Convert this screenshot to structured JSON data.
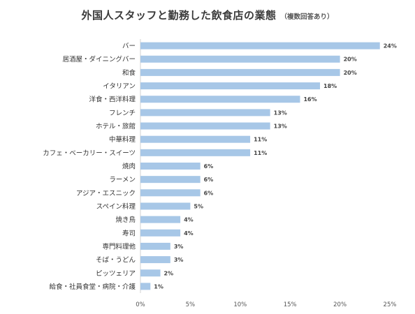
{
  "chart_data": {
    "type": "bar",
    "orientation": "horizontal",
    "title": "外国人スタッフと勤務した飲食店の業態",
    "subtitle": "（複数回答あり）",
    "categories": [
      "バー",
      "居酒屋・ダイニングバー",
      "和食",
      "イタリアン",
      "洋食・西洋料理",
      "フレンチ",
      "ホテル・旅館",
      "中華料理",
      "カフェ・ベーカリー・スイーツ",
      "焼肉",
      "ラーメン",
      "アジア・エスニック",
      "スペイン料理",
      "焼き鳥",
      "寿司",
      "専門料理他",
      "そば・うどん",
      "ピッツェリア",
      "給食・社員食堂・病院・介護"
    ],
    "values": [
      24,
      20,
      20,
      18,
      16,
      13,
      13,
      11,
      11,
      6,
      6,
      6,
      5,
      4,
      4,
      3,
      3,
      2,
      1
    ],
    "value_labels": [
      "24%",
      "20%",
      "20%",
      "18%",
      "16%",
      "13%",
      "13%",
      "11%",
      "11%",
      "6%",
      "6%",
      "6%",
      "5%",
      "4%",
      "4%",
      "3%",
      "3%",
      "2%",
      "1%"
    ],
    "xlim": [
      0,
      25
    ],
    "xticks": [
      0,
      5,
      10,
      15,
      20,
      25
    ],
    "xtick_labels": [
      "0%",
      "5%",
      "10%",
      "15%",
      "20%",
      "25%"
    ],
    "grid": false,
    "legend": "none",
    "bar_color": "#a7c7e7",
    "axis_color": "#d0d0d0"
  }
}
